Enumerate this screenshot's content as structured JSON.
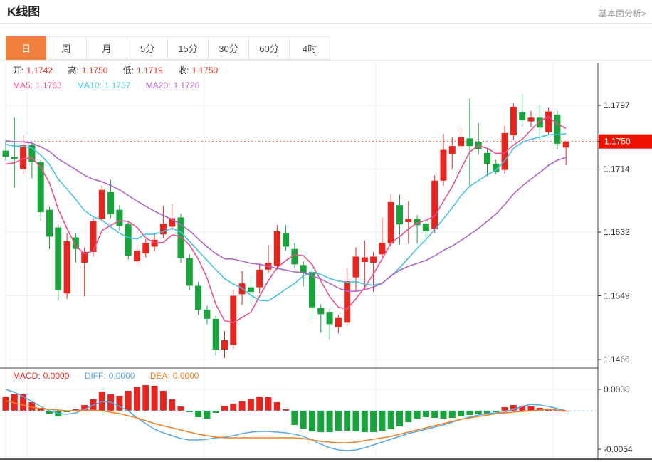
{
  "header": {
    "title": "K线图",
    "link": "基本面分析>"
  },
  "tabs": {
    "items": [
      "日",
      "周",
      "月",
      "5分",
      "15分",
      "30分",
      "60分",
      "4时"
    ],
    "active_index": 0
  },
  "info": {
    "open_label": "开:",
    "open": "1.1742",
    "high_label": "高:",
    "high": "1.1750",
    "low_label": "低:",
    "low": "1.1719",
    "close_label": "收:",
    "close": "1.1750",
    "ma5_label": "MA5:",
    "ma5": "1.1763",
    "ma10_label": "MA10:",
    "ma10": "1.1757",
    "ma20_label": "MA20:",
    "ma20": "1.1726"
  },
  "macd_info": {
    "macd_label": "MACD:",
    "macd": "0.0000",
    "diff_label": "DIFF:",
    "diff": "0.0000",
    "dea_label": "DEA:",
    "dea": "0.0000"
  },
  "colors": {
    "up": "#e7251f",
    "down": "#17a43b",
    "ma5": "#ef4e8e",
    "ma10": "#46c2e2",
    "ma20": "#b163c9",
    "diff": "#57a8e8",
    "dea": "#f08021",
    "value_red": "#ef2b23",
    "price_line": "#f23a2e",
    "badge": "#ee1100",
    "grid": "#e9eff7",
    "zero_line": "#a6d4ea",
    "axis": "#444",
    "tick_text": "#333",
    "tab_active": "#f0803b"
  },
  "chart_data": {
    "type": "candlestick+macd",
    "title": "K线图",
    "legend": [
      "MA5",
      "MA10",
      "MA20",
      "MACD",
      "DIFF",
      "DEA"
    ],
    "price_ticks": [
      {
        "label": "1.1797",
        "value": 1.1797
      },
      {
        "label": "1.1714",
        "value": 1.1714
      },
      {
        "label": "1.1632",
        "value": 1.1632
      },
      {
        "label": "1.1549",
        "value": 1.1549
      },
      {
        "label": "1.1466",
        "value": 1.1466
      }
    ],
    "current_price": {
      "label": "1.1750",
      "value": 1.175
    },
    "macd_ticks": [
      {
        "label": "0.0030",
        "value": 0.003
      },
      {
        "label": "-0.0054",
        "value": -0.0054
      }
    ],
    "ma": [
      {
        "name": "MA5",
        "period": 5,
        "pad": 1.1718
      },
      {
        "name": "MA10",
        "period": 10,
        "pad": 1.1748
      },
      {
        "name": "MA20",
        "period": 20,
        "pad": 1.1752
      }
    ],
    "candles": [
      [
        1.1738,
        1.1752,
        1.1725,
        1.173
      ],
      [
        1.173,
        1.1781,
        1.169,
        1.1727
      ],
      [
        1.1714,
        1.1758,
        1.1708,
        1.1745
      ],
      [
        1.1745,
        1.175,
        1.1702,
        1.1723
      ],
      [
        1.1723,
        1.1726,
        1.1647,
        1.1658
      ],
      [
        1.1661,
        1.1665,
        1.161,
        1.1626
      ],
      [
        1.1638,
        1.1642,
        1.1543,
        1.1556
      ],
      [
        1.1552,
        1.163,
        1.1545,
        1.162
      ],
      [
        1.1625,
        1.163,
        1.1592,
        1.161
      ],
      [
        1.1592,
        1.1612,
        1.1548,
        1.1606
      ],
      [
        1.1606,
        1.165,
        1.16,
        1.1646
      ],
      [
        1.1649,
        1.1693,
        1.1645,
        1.1687
      ],
      [
        1.1684,
        1.17,
        1.165,
        1.1655
      ],
      [
        1.1661,
        1.1667,
        1.1634,
        1.164
      ],
      [
        1.1642,
        1.1647,
        1.1596,
        1.1601
      ],
      [
        1.1594,
        1.1613,
        1.1589,
        1.1608
      ],
      [
        1.1604,
        1.1623,
        1.1599,
        1.1618
      ],
      [
        1.1613,
        1.1629,
        1.1607,
        1.1622
      ],
      [
        1.1629,
        1.1666,
        1.1624,
        1.1643
      ],
      [
        1.1639,
        1.1668,
        1.1634,
        1.165
      ],
      [
        1.1651,
        1.1656,
        1.1592,
        1.1598
      ],
      [
        1.1598,
        1.1603,
        1.1556,
        1.1562
      ],
      [
        1.1562,
        1.1567,
        1.1524,
        1.1531
      ],
      [
        1.1531,
        1.1536,
        1.1512,
        1.1519
      ],
      [
        1.1519,
        1.1523,
        1.1471,
        1.1479
      ],
      [
        1.1479,
        1.1503,
        1.1468,
        1.1491
      ],
      [
        1.1485,
        1.1556,
        1.148,
        1.1549
      ],
      [
        1.1551,
        1.1581,
        1.1537,
        1.1565
      ],
      [
        1.156,
        1.1575,
        1.1537,
        1.1554
      ],
      [
        1.156,
        1.159,
        1.1552,
        1.1583
      ],
      [
        1.1583,
        1.1615,
        1.1578,
        1.1592
      ],
      [
        1.1588,
        1.1641,
        1.1583,
        1.1633
      ],
      [
        1.163,
        1.1641,
        1.1608,
        1.1613
      ],
      [
        1.161,
        1.1618,
        1.1585,
        1.159
      ],
      [
        1.1589,
        1.1594,
        1.1561,
        1.1579
      ],
      [
        1.158,
        1.1585,
        1.1517,
        1.1534
      ],
      [
        1.1533,
        1.1538,
        1.1501,
        1.1525
      ],
      [
        1.1528,
        1.1532,
        1.1492,
        1.1512
      ],
      [
        1.1508,
        1.1524,
        1.15,
        1.152
      ],
      [
        1.1514,
        1.1585,
        1.151,
        1.1568
      ],
      [
        1.1573,
        1.1612,
        1.1554,
        1.16
      ],
      [
        1.1593,
        1.1621,
        1.1556,
        1.1599
      ],
      [
        1.1592,
        1.1606,
        1.1554,
        1.16
      ],
      [
        1.1603,
        1.1651,
        1.1598,
        1.1618
      ],
      [
        1.1617,
        1.1682,
        1.1612,
        1.1671
      ],
      [
        1.1667,
        1.1681,
        1.1616,
        1.1642
      ],
      [
        1.1645,
        1.1672,
        1.1617,
        1.1649
      ],
      [
        1.1649,
        1.1654,
        1.1617,
        1.1641
      ],
      [
        1.1643,
        1.1648,
        1.1616,
        1.1633
      ],
      [
        1.1636,
        1.1706,
        1.1631,
        1.1699
      ],
      [
        1.1699,
        1.176,
        1.1692,
        1.1739
      ],
      [
        1.1734,
        1.1755,
        1.1714,
        1.1744
      ],
      [
        1.1744,
        1.1768,
        1.1738,
        1.1756
      ],
      [
        1.1754,
        1.1806,
        1.1691,
        1.1744
      ],
      [
        1.1749,
        1.1774,
        1.1733,
        1.174
      ],
      [
        1.1735,
        1.174,
        1.1705,
        1.1721
      ],
      [
        1.1721,
        1.1726,
        1.1707,
        1.171
      ],
      [
        1.1713,
        1.177,
        1.1708,
        1.1761
      ],
      [
        1.1758,
        1.18,
        1.1752,
        1.1795
      ],
      [
        1.1788,
        1.1812,
        1.177,
        1.1778
      ],
      [
        1.1776,
        1.179,
        1.1769,
        1.1781
      ],
      [
        1.1781,
        1.1797,
        1.1752,
        1.1768
      ],
      [
        1.1762,
        1.1794,
        1.1758,
        1.1789
      ],
      [
        1.1785,
        1.179,
        1.174,
        1.1747
      ],
      [
        1.1742,
        1.175,
        1.1719,
        1.175
      ]
    ],
    "macd": {
      "hist": [
        0.002,
        0.0023,
        0.0023,
        0.0012,
        0.0004,
        -0.0004,
        -0.0008,
        -0.0002,
        0.0002,
        0.0008,
        0.0016,
        0.0027,
        0.0023,
        0.0021,
        0.0028,
        0.0033,
        0.0036,
        0.0035,
        0.0028,
        0.0016,
        0.0006,
        -0.0002,
        -0.0009,
        -0.0011,
        -0.0003,
        0.0007,
        0.001,
        0.0013,
        0.0017,
        0.002,
        0.0019,
        0.0012,
        0.0002,
        -0.002,
        -0.0025,
        -0.0029,
        -0.003,
        -0.003,
        -0.0028,
        -0.0028,
        -0.0029,
        -0.003,
        -0.003,
        -0.0028,
        -0.0026,
        -0.0022,
        -0.0016,
        -0.0011,
        -0.0009,
        -0.001,
        -0.0011,
        -0.001,
        -0.0008,
        -0.0006,
        -0.0005,
        -0.0004,
        -0.0002,
        0.0005,
        0.0008,
        0.0007,
        0.0006,
        0.0004,
        0.0003,
        0.0001,
        0.0
      ],
      "diff": [
        0.003,
        0.0026,
        0.002,
        0.0013,
        0.0006,
        0.0,
        -0.0004,
        -0.0005,
        -0.0003,
        0.0002,
        0.0008,
        0.0013,
        0.0012,
        0.0006,
        0.0,
        -0.001,
        -0.0018,
        -0.0026,
        -0.0031,
        -0.0035,
        -0.0039,
        -0.0041,
        -0.0041,
        -0.004,
        -0.0038,
        -0.0037,
        -0.0035,
        -0.0032,
        -0.003,
        -0.0029,
        -0.0029,
        -0.003,
        -0.0031,
        -0.0033,
        -0.0036,
        -0.0041,
        -0.0047,
        -0.0052,
        -0.0055,
        -0.0056,
        -0.0055,
        -0.0052,
        -0.0048,
        -0.0044,
        -0.004,
        -0.0036,
        -0.0032,
        -0.0029,
        -0.0026,
        -0.0023,
        -0.002,
        -0.0016,
        -0.0012,
        -0.0009,
        -0.0006,
        -0.0004,
        -0.0003,
        -0.0002,
        0.0002,
        0.0006,
        0.0009,
        0.0008,
        0.0006,
        0.0003,
        0.0
      ],
      "dea": [
        0.0014,
        0.0011,
        0.0008,
        0.0005,
        0.0003,
        0.0002,
        0.0001,
        0.0,
        0.0,
        0.0001,
        0.0001,
        0.0,
        -0.0002,
        -0.0004,
        -0.0007,
        -0.001,
        -0.0014,
        -0.0018,
        -0.0021,
        -0.0024,
        -0.0027,
        -0.003,
        -0.0033,
        -0.0035,
        -0.0037,
        -0.0038,
        -0.0038,
        -0.0038,
        -0.0038,
        -0.0038,
        -0.0038,
        -0.0038,
        -0.0038,
        -0.0038,
        -0.0039,
        -0.0041,
        -0.0043,
        -0.0044,
        -0.0045,
        -0.0045,
        -0.0044,
        -0.0042,
        -0.004,
        -0.0038,
        -0.0036,
        -0.0033,
        -0.003,
        -0.0027,
        -0.0024,
        -0.0021,
        -0.0018,
        -0.0015,
        -0.0012,
        -0.001,
        -0.0008,
        -0.0006,
        -0.0004,
        -0.0003,
        -0.0002,
        -0.0001,
        0.0,
        0.0001,
        0.0002,
        0.0001,
        0.0
      ]
    },
    "layout_hints": {
      "grid": true,
      "price_axis_side": "right",
      "panels": [
        "price",
        "macd"
      ]
    }
  }
}
